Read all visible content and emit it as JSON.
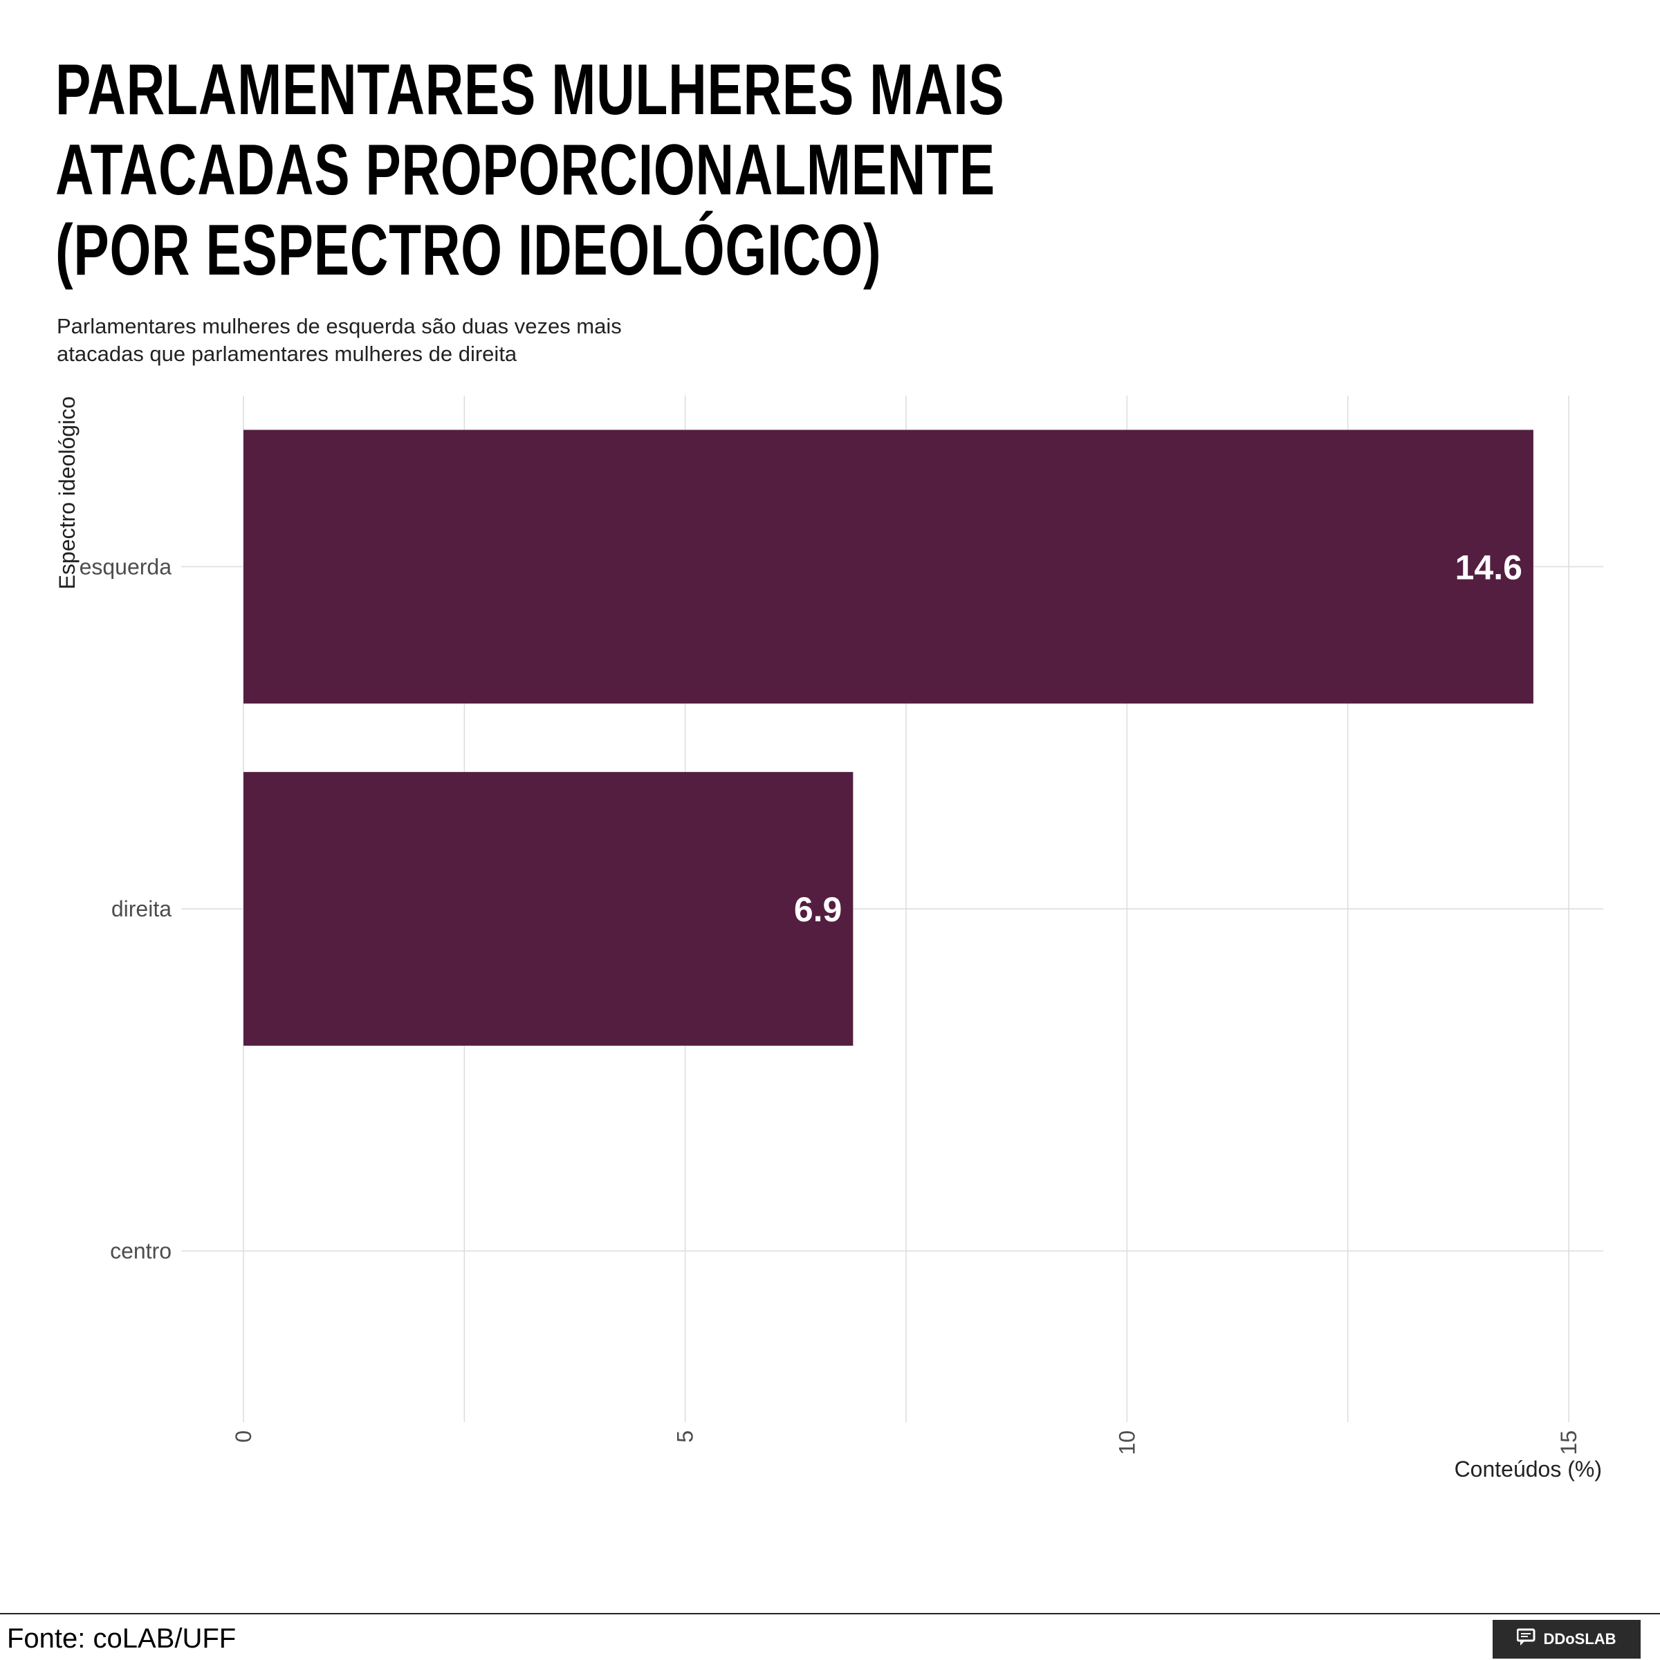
{
  "title": "PARLAMENTARES MULHERES MAIS ATACADAS PROPORCIONALMENTE (POR ESPECTRO IDEOLÓGICO)",
  "subtitle": "Parlamentares mulheres de esquerda são duas vezes mais atacadas que parlamentares mulheres de direita",
  "source": "Fonte: coLAB/UFF",
  "logo_text": "DDoSLAB",
  "colors": {
    "bar": "#541e41",
    "grid": "#dcdcdc",
    "label": "#ffffff"
  },
  "chart_data": {
    "type": "bar",
    "orientation": "horizontal",
    "categories": [
      "esquerda",
      "direita",
      "centro"
    ],
    "values": [
      14.6,
      6.9,
      null
    ],
    "data_labels": [
      "14.6",
      "6.9",
      ""
    ],
    "xlabel": "Conteúdos (%)",
    "ylabel": "Espectro ideológico",
    "xlim": [
      0,
      15
    ],
    "xticks": [
      0,
      5,
      10,
      15
    ],
    "grid": true
  }
}
